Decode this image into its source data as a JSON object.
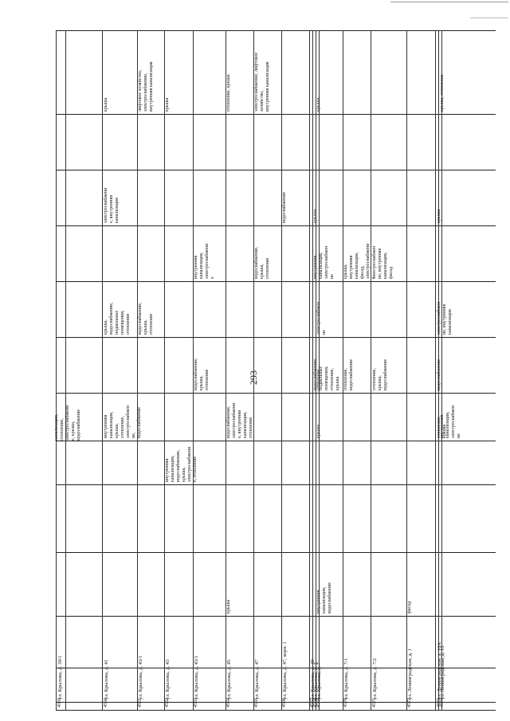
{
  "page_number": "293",
  "rows": [
    {
      "num": "4559",
      "address": "ул. Крылова, д. 39/1",
      "c1": "",
      "c2": "",
      "c3": "",
      "c4": "",
      "c5": "",
      "c6": "",
      "c7": "",
      "c8": "",
      "c9": "",
      "c10": ""
    },
    {
      "num": "4560",
      "address": "ул. Крылова, д. 41",
      "c1": "",
      "c2": "",
      "c3": "",
      "c4": "внутренняя\nканализация,\nкрыша,\nотопление,\nэлектроснабжен\nие,\nводоснабжение",
      "c5": "",
      "c6": "крыша,\nводоснабжение,\nподвальные\nпомещения,\nотопление",
      "c7": "",
      "c8": "электроснабжени\nе, внутренняя\nканализация",
      "c9": "",
      "c10": "крыша"
    },
    {
      "num": "4561",
      "address": "ул. Крылова, д. 43/1",
      "c1": "",
      "c2": "",
      "c3": "",
      "c4": "",
      "c5": "",
      "c6": "водоснабжение,\nкрыша,\nотопление",
      "c7": "",
      "c8": "",
      "c9": "",
      "c10": "лифтовое хозяйство, электроснабжение,\nвнутренняя канализация"
    },
    {
      "num": "4562",
      "address": "ул. Крылова, д. 43",
      "c1": "",
      "c2": "",
      "c3": "внутренняя\nканализация,\nводоснабжение,\nкрыша,\nэлектроснабжени\nе, отопление",
      "c4": "",
      "c5": "",
      "c6": "",
      "c7": "",
      "c8": "",
      "c9": "",
      "c10": "крыша"
    },
    {
      "num": "4563",
      "address": "ул. Крылова, д. 43/1",
      "c1": "",
      "c2": "",
      "c3": "",
      "c4": "",
      "c5": "водоснабжение,\nкрыша,\nотопление",
      "c6": "",
      "c7": "внутренняя\nканализация,\nэлектроснабжени\nе",
      "c8": "",
      "c9": "",
      "c10": ""
    },
    {
      "num": "4564",
      "address": "ул. Крылова, д. 45",
      "c1": "крыша",
      "c2": "",
      "c3": "",
      "c4": "водоснабжение,\nэлектроснабжени\nе, внутренняя\nканализация,\nотопление",
      "c5": "",
      "c6": "",
      "c7": "",
      "c8": "",
      "c9": "",
      "c10": "отопление, крыша"
    },
    {
      "num": "4565",
      "address": "ул. Крылова, д. 47",
      "c1": "",
      "c2": "",
      "c3": "",
      "c4": "",
      "c5": "",
      "c6": "",
      "c7": "водоснабжение,\nкрыша,\nотопление",
      "c8": "",
      "c9": "",
      "c10": "электроснабжение, лифтовое хозяйство,\nвнутренняя канализация"
    },
    {
      "num": "4566",
      "address": "ул. Крылова, д. 47, корп. 1",
      "c1": "",
      "c2": "",
      "c3": "",
      "c4": "",
      "c5": "",
      "c6": "",
      "c7": "",
      "c8": "водоснабжение",
      "c9": "",
      "c10": ""
    },
    {
      "num": "4567",
      "address": "ул. Крылова, д. 49",
      "c1": "",
      "c2": "",
      "c3": "",
      "c4": "",
      "c5": "",
      "c6": "",
      "c7": "",
      "c8": "",
      "c9": "",
      "c10": ""
    },
    {
      "num": "4568",
      "address": "ул. Крылова, д. 5",
      "c1": "",
      "c2": "",
      "c3": "",
      "c4": "",
      "c5": "водоснабжение,\nподвальные\nпомещения,\nотопление,\nкрыша",
      "c6": "",
      "c7": "внутренняя\nканализация,\nэлектроснабжен\nие",
      "c8": "крыша",
      "c9": "",
      "c10": ""
    },
    {
      "num": "4569",
      "address": "ул. Крылова, д. 7",
      "c1": "внутренняя\nканализация,\nводоснабжение",
      "c2": "",
      "c3": "",
      "c4": "крыша",
      "c5": "отопление",
      "c6": "электроснабжен\nие",
      "c7": "",
      "c8": "",
      "c9": "",
      "c10": "крыша"
    },
    {
      "num": "4570",
      "address": "ул. Крылова, д. 7/1",
      "c1": "",
      "c2": "",
      "c3": "",
      "c4": "",
      "c5": "отопление,\nводоснабжение",
      "c6": "",
      "c7": "крыша,\nвнутренняя\nканализация,\nфасад,\nэлектроснабжени\nе",
      "c8": "",
      "c9": "",
      "c10": ""
    },
    {
      "num": "4571",
      "address": "ул. Крылова, д. 7/2",
      "c1": "",
      "c2": "",
      "c3": "",
      "c4": "",
      "c5": "отопление,\nкрыша,\nводоснабжение",
      "c6": "",
      "c7": "электроснабжен\nие, внутренняя\nканализация,\nфасад",
      "c8": "",
      "c9": "",
      "c10": ""
    },
    {
      "num": "4572",
      "address": "ул. Ленинградская, д. 1",
      "c1": "фасад",
      "c2": "",
      "c3": "",
      "c4": "",
      "c5": "",
      "c6": "",
      "c7": "",
      "c8": "",
      "c9": "",
      "c10": ""
    },
    {
      "num": "4573",
      "address": "ул. Ленинградская, д. 10А",
      "c1": "",
      "c2": "",
      "c3": "",
      "c4": "отопление,\nкрыша",
      "c5": "водоснабжение",
      "c6": "электроснабжен\nие, внутренняя\nканализация",
      "c7": "",
      "c8": "крыша",
      "c9": "",
      "c10": ""
    },
    {
      "num": "4574",
      "address": "ул. Ленинградская, д. 15",
      "c1": "",
      "c2": "",
      "c3": "",
      "c4": "внутренняя\nканализация,\nэлектроснабжен\nие",
      "c5": "",
      "c6": "",
      "c7": "",
      "c8": "",
      "c9": "",
      "c10": "крыша, отопление"
    }
  ],
  "continuation": {
    "text": "канализация,\nотопление,\nэлектроснабжени\nе, крыша,\nводоснабжение"
  }
}
